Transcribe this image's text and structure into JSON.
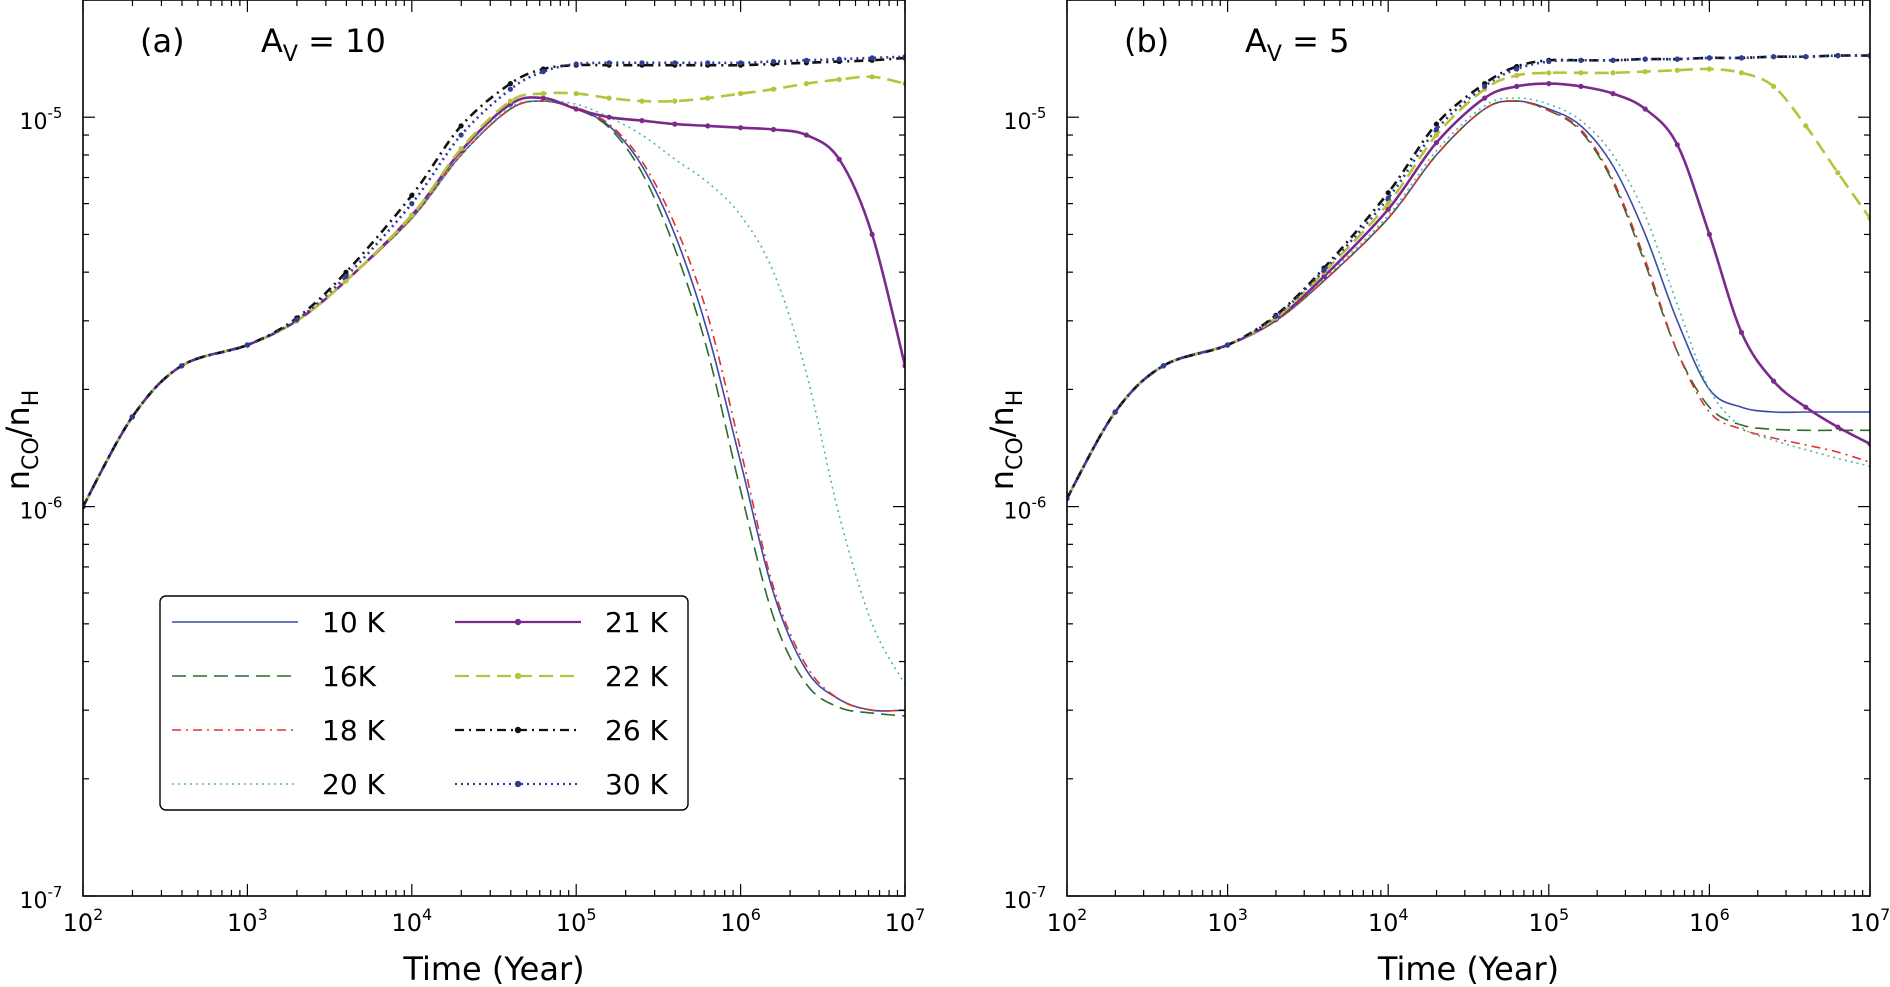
{
  "figure": {
    "xlabel": "Time (Year)",
    "ylabel_main": "n",
    "ylabel_sub1": "CO",
    "ylabel_sep": "/n",
    "ylabel_sub2": "H"
  },
  "legend": {
    "entries": [
      {
        "label": "10 K",
        "color": "#3b4ba8",
        "style": "solid",
        "marker": false
      },
      {
        "label": "16K",
        "color": "#2e6b2e",
        "style": "dashed",
        "marker": false
      },
      {
        "label": "18 K",
        "color": "#e0322d",
        "style": "dashdot",
        "marker": false
      },
      {
        "label": "20 K",
        "color": "#4fb9a6",
        "style": "dotted",
        "marker": false
      },
      {
        "label": "21 K",
        "color": "#7b2a8c",
        "style": "solid",
        "marker": true
      },
      {
        "label": "22 K",
        "color": "#b8c23a",
        "style": "dashed",
        "marker": true
      },
      {
        "label": "26 K",
        "color": "#111111",
        "style": "dashdot",
        "marker": true
      },
      {
        "label": "30 K",
        "color": "#2f3d94",
        "style": "dotted",
        "marker": true
      }
    ]
  },
  "chart_data": [
    {
      "type": "line",
      "panel_label": "(a)",
      "annotation_main": "A",
      "annotation_sub": "V",
      "annotation_value": " = 10",
      "xscale": "log",
      "yscale": "log",
      "xlim": [
        100,
        10000000
      ],
      "ylim": [
        1e-07,
        2e-05
      ],
      "x_ticks": [
        {
          "base": "10",
          "exp": "2"
        },
        {
          "base": "10",
          "exp": "3"
        },
        {
          "base": "10",
          "exp": "4"
        },
        {
          "base": "10",
          "exp": "5"
        },
        {
          "base": "10",
          "exp": "6"
        },
        {
          "base": "10",
          "exp": "7"
        }
      ],
      "y_ticks": [
        {
          "base": "10",
          "exp": "-7"
        },
        {
          "base": "10",
          "exp": "-6"
        },
        {
          "base": "10",
          "exp": "-5"
        }
      ],
      "series": [
        {
          "name": "10 K",
          "logt": [
            2,
            2.3,
            2.6,
            3,
            3.3,
            3.6,
            4,
            4.3,
            4.6,
            4.8,
            5,
            5.2,
            5.4,
            5.6,
            5.8,
            6,
            6.2,
            6.4,
            6.6,
            6.8,
            7
          ],
          "values": [
            1e-06,
            1.7e-06,
            2.3e-06,
            2.6e-06,
            3e-06,
            3.8e-06,
            5.5e-06,
            8e-06,
            1.05e-05,
            1.1e-05,
            1.05e-05,
            9.5e-06,
            7.5e-06,
            5e-06,
            2.8e-06,
            1.3e-06,
            6e-07,
            3.8e-07,
            3.2e-07,
            3e-07,
            3e-07
          ]
        },
        {
          "name": "16K",
          "logt": [
            2,
            2.3,
            2.6,
            3,
            3.3,
            3.6,
            4,
            4.3,
            4.6,
            4.8,
            5,
            5.2,
            5.4,
            5.6,
            5.8,
            6,
            6.2,
            6.4,
            6.6,
            6.8,
            7
          ],
          "values": [
            1e-06,
            1.7e-06,
            2.3e-06,
            2.6e-06,
            3e-06,
            3.8e-06,
            5.5e-06,
            8e-06,
            1.05e-05,
            1.1e-05,
            1.05e-05,
            9.4e-06,
            7.2e-06,
            4.6e-06,
            2.5e-06,
            1.1e-06,
            5.2e-07,
            3.5e-07,
            3.05e-07,
            2.95e-07,
            2.9e-07
          ]
        },
        {
          "name": "18 K",
          "logt": [
            2,
            2.3,
            2.6,
            3,
            3.3,
            3.6,
            4,
            4.3,
            4.6,
            4.8,
            5,
            5.2,
            5.4,
            5.6,
            5.8,
            6,
            6.2,
            6.4,
            6.6,
            6.8,
            7
          ],
          "values": [
            1e-06,
            1.7e-06,
            2.3e-06,
            2.6e-06,
            3e-06,
            3.8e-06,
            5.5e-06,
            8e-06,
            1.05e-05,
            1.1e-05,
            1.06e-05,
            9.6e-06,
            7.7e-06,
            5.3e-06,
            3.1e-06,
            1.4e-06,
            6.2e-07,
            3.9e-07,
            3.2e-07,
            3e-07,
            3e-07
          ]
        },
        {
          "name": "20 K",
          "logt": [
            2,
            2.3,
            2.6,
            3,
            3.3,
            3.6,
            4,
            4.3,
            4.6,
            4.8,
            5,
            5.2,
            5.4,
            5.6,
            5.8,
            6,
            6.2,
            6.4,
            6.6,
            6.8,
            7
          ],
          "values": [
            1e-06,
            1.7e-06,
            2.3e-06,
            2.6e-06,
            3e-06,
            3.8e-06,
            5.5e-06,
            8e-06,
            1.06e-05,
            1.1e-05,
            1.08e-05,
            1e-05,
            9e-06,
            7.8e-06,
            6.8e-06,
            5.6e-06,
            4e-06,
            2.2e-06,
            9.5e-07,
            5e-07,
            3.5e-07
          ]
        },
        {
          "name": "21 K",
          "logt": [
            2,
            2.3,
            2.6,
            3,
            3.3,
            3.6,
            4,
            4.3,
            4.6,
            4.8,
            5,
            5.2,
            5.4,
            5.6,
            5.8,
            6,
            6.2,
            6.4,
            6.6,
            6.8,
            7
          ],
          "values": [
            1e-06,
            1.7e-06,
            2.3e-06,
            2.6e-06,
            3e-06,
            3.8e-06,
            5.6e-06,
            8.2e-06,
            1.08e-05,
            1.12e-05,
            1.05e-05,
            1e-05,
            9.8e-06,
            9.6e-06,
            9.5e-06,
            9.4e-06,
            9.3e-06,
            9e-06,
            7.8e-06,
            5e-06,
            2.3e-06
          ]
        },
        {
          "name": "22 K",
          "logt": [
            2,
            2.3,
            2.6,
            3,
            3.3,
            3.6,
            4,
            4.3,
            4.6,
            4.8,
            5,
            5.2,
            5.4,
            5.6,
            5.8,
            6,
            6.2,
            6.4,
            6.6,
            6.8,
            7
          ],
          "values": [
            1e-06,
            1.7e-06,
            2.3e-06,
            2.6e-06,
            3e-06,
            3.8e-06,
            5.6e-06,
            8.3e-06,
            1.1e-05,
            1.15e-05,
            1.15e-05,
            1.12e-05,
            1.1e-05,
            1.1e-05,
            1.12e-05,
            1.15e-05,
            1.18e-05,
            1.22e-05,
            1.25e-05,
            1.27e-05,
            1.22e-05
          ]
        },
        {
          "name": "26 K",
          "logt": [
            2,
            2.3,
            2.6,
            3,
            3.3,
            3.6,
            4,
            4.3,
            4.6,
            4.8,
            5,
            5.2,
            5.4,
            5.6,
            5.8,
            6,
            6.2,
            6.4,
            6.6,
            6.8,
            7
          ],
          "values": [
            1e-06,
            1.7e-06,
            2.3e-06,
            2.6e-06,
            3.05e-06,
            4e-06,
            6.3e-06,
            9.5e-06,
            1.22e-05,
            1.33e-05,
            1.36e-05,
            1.36e-05,
            1.36e-05,
            1.36e-05,
            1.36e-05,
            1.36e-05,
            1.37e-05,
            1.38e-05,
            1.39e-05,
            1.4e-05,
            1.42e-05
          ]
        },
        {
          "name": "30 K",
          "logt": [
            2,
            2.3,
            2.6,
            3,
            3.3,
            3.6,
            4,
            4.3,
            4.6,
            4.8,
            5,
            5.2,
            5.4,
            5.6,
            5.8,
            6,
            6.2,
            6.4,
            6.6,
            6.8,
            7
          ],
          "values": [
            1e-06,
            1.7e-06,
            2.3e-06,
            2.6e-06,
            3.02e-06,
            3.9e-06,
            6e-06,
            9e-06,
            1.18e-05,
            1.31e-05,
            1.37e-05,
            1.38e-05,
            1.38e-05,
            1.38e-05,
            1.38e-05,
            1.38e-05,
            1.39e-05,
            1.4e-05,
            1.41e-05,
            1.42e-05,
            1.43e-05
          ]
        }
      ]
    },
    {
      "type": "line",
      "panel_label": "(b)",
      "annotation_main": "A",
      "annotation_sub": "V",
      "annotation_value": " = 5",
      "xscale": "log",
      "yscale": "log",
      "xlim": [
        100,
        10000000
      ],
      "ylim": [
        1e-07,
        2e-05
      ],
      "x_ticks": [
        {
          "base": "10",
          "exp": "2"
        },
        {
          "base": "10",
          "exp": "3"
        },
        {
          "base": "10",
          "exp": "4"
        },
        {
          "base": "10",
          "exp": "5"
        },
        {
          "base": "10",
          "exp": "6"
        },
        {
          "base": "10",
          "exp": "7"
        }
      ],
      "y_ticks": [
        {
          "base": "10",
          "exp": "-7"
        },
        {
          "base": "10",
          "exp": "-6"
        },
        {
          "base": "10",
          "exp": "-5"
        }
      ],
      "series": [
        {
          "name": "10 K",
          "logt": [
            2,
            2.3,
            2.6,
            3,
            3.3,
            3.6,
            4,
            4.3,
            4.6,
            4.8,
            5,
            5.2,
            5.4,
            5.6,
            5.8,
            6,
            6.2,
            6.4,
            6.6,
            6.8,
            7
          ],
          "values": [
            1.05e-06,
            1.75e-06,
            2.3e-06,
            2.6e-06,
            3e-06,
            3.8e-06,
            5.5e-06,
            8e-06,
            1.05e-05,
            1.1e-05,
            1.05e-05,
            9.5e-06,
            7.5e-06,
            5e-06,
            3e-06,
            2e-06,
            1.8e-06,
            1.75e-06,
            1.75e-06,
            1.75e-06,
            1.75e-06
          ]
        },
        {
          "name": "16K",
          "logt": [
            2,
            2.3,
            2.6,
            3,
            3.3,
            3.6,
            4,
            4.3,
            4.6,
            4.8,
            5,
            5.2,
            5.4,
            5.6,
            5.8,
            6,
            6.2,
            6.4,
            6.6,
            6.8,
            7
          ],
          "values": [
            1.05e-06,
            1.75e-06,
            2.3e-06,
            2.6e-06,
            3e-06,
            3.8e-06,
            5.5e-06,
            8e-06,
            1.05e-05,
            1.1e-05,
            1.04e-05,
            9.2e-06,
            6.8e-06,
            4.2e-06,
            2.5e-06,
            1.8e-06,
            1.62e-06,
            1.58e-06,
            1.57e-06,
            1.57e-06,
            1.57e-06
          ]
        },
        {
          "name": "18 K",
          "logt": [
            2,
            2.3,
            2.6,
            3,
            3.3,
            3.6,
            4,
            4.3,
            4.6,
            4.8,
            5,
            5.2,
            5.4,
            5.6,
            5.8,
            6,
            6.2,
            6.4,
            6.6,
            6.8,
            7
          ],
          "values": [
            1.05e-06,
            1.75e-06,
            2.3e-06,
            2.6e-06,
            3e-06,
            3.8e-06,
            5.5e-06,
            8e-06,
            1.05e-05,
            1.1e-05,
            1.04e-05,
            9.3e-06,
            6.9e-06,
            4.3e-06,
            2.5e-06,
            1.75e-06,
            1.58e-06,
            1.5e-06,
            1.44e-06,
            1.38e-06,
            1.3e-06
          ]
        },
        {
          "name": "20 K",
          "logt": [
            2,
            2.3,
            2.6,
            3,
            3.3,
            3.6,
            4,
            4.3,
            4.6,
            4.8,
            5,
            5.2,
            5.4,
            5.6,
            5.8,
            6,
            6.2,
            6.4,
            6.6,
            6.8,
            7
          ],
          "values": [
            1.05e-06,
            1.75e-06,
            2.3e-06,
            2.6e-06,
            3e-06,
            3.85e-06,
            5.6e-06,
            8.2e-06,
            1.07e-05,
            1.12e-05,
            1.08e-05,
            9.8e-06,
            8e-06,
            5.6e-06,
            3.3e-06,
            2e-06,
            1.6e-06,
            1.48e-06,
            1.4e-06,
            1.33e-06,
            1.27e-06
          ]
        },
        {
          "name": "21 K",
          "logt": [
            2,
            2.3,
            2.6,
            3,
            3.3,
            3.6,
            4,
            4.3,
            4.6,
            4.8,
            5,
            5.2,
            5.4,
            5.6,
            5.8,
            6,
            6.2,
            6.4,
            6.6,
            6.8,
            7
          ],
          "values": [
            1.05e-06,
            1.75e-06,
            2.3e-06,
            2.6e-06,
            3.02e-06,
            3.9e-06,
            5.8e-06,
            8.6e-06,
            1.12e-05,
            1.2e-05,
            1.22e-05,
            1.2e-05,
            1.15e-05,
            1.05e-05,
            8.5e-06,
            5e-06,
            2.8e-06,
            2.1e-06,
            1.8e-06,
            1.6e-06,
            1.45e-06
          ]
        },
        {
          "name": "22 K",
          "logt": [
            2,
            2.3,
            2.6,
            3,
            3.3,
            3.6,
            4,
            4.3,
            4.6,
            4.8,
            5,
            5.2,
            5.4,
            5.6,
            5.8,
            6,
            6.2,
            6.4,
            6.6,
            6.8,
            7
          ],
          "values": [
            1.05e-06,
            1.75e-06,
            2.3e-06,
            2.6e-06,
            3.05e-06,
            4e-06,
            6e-06,
            9e-06,
            1.18e-05,
            1.28e-05,
            1.3e-05,
            1.3e-05,
            1.3e-05,
            1.31e-05,
            1.32e-05,
            1.33e-05,
            1.3e-05,
            1.2e-05,
            9.5e-06,
            7.2e-06,
            5.5e-06
          ]
        },
        {
          "name": "26 K",
          "logt": [
            2,
            2.3,
            2.6,
            3,
            3.3,
            3.6,
            4,
            4.3,
            4.6,
            4.8,
            5,
            5.2,
            5.4,
            5.6,
            5.8,
            6,
            6.2,
            6.4,
            6.6,
            6.8,
            7
          ],
          "values": [
            1.05e-06,
            1.75e-06,
            2.3e-06,
            2.6e-06,
            3.1e-06,
            4.1e-06,
            6.4e-06,
            9.6e-06,
            1.22e-05,
            1.35e-05,
            1.4e-05,
            1.4e-05,
            1.4e-05,
            1.41e-05,
            1.41e-05,
            1.42e-05,
            1.42e-05,
            1.43e-05,
            1.43e-05,
            1.44e-05,
            1.44e-05
          ]
        },
        {
          "name": "30 K",
          "logt": [
            2,
            2.3,
            2.6,
            3,
            3.3,
            3.6,
            4,
            4.3,
            4.6,
            4.8,
            5,
            5.2,
            5.4,
            5.6,
            5.8,
            6,
            6.2,
            6.4,
            6.6,
            6.8,
            7
          ],
          "values": [
            1.05e-06,
            1.75e-06,
            2.3e-06,
            2.6e-06,
            3.08e-06,
            4.05e-06,
            6.2e-06,
            9.3e-06,
            1.2e-05,
            1.33e-05,
            1.39e-05,
            1.4e-05,
            1.4e-05,
            1.41e-05,
            1.41e-05,
            1.42e-05,
            1.42e-05,
            1.43e-05,
            1.43e-05,
            1.44e-05,
            1.44e-05
          ]
        }
      ]
    }
  ]
}
